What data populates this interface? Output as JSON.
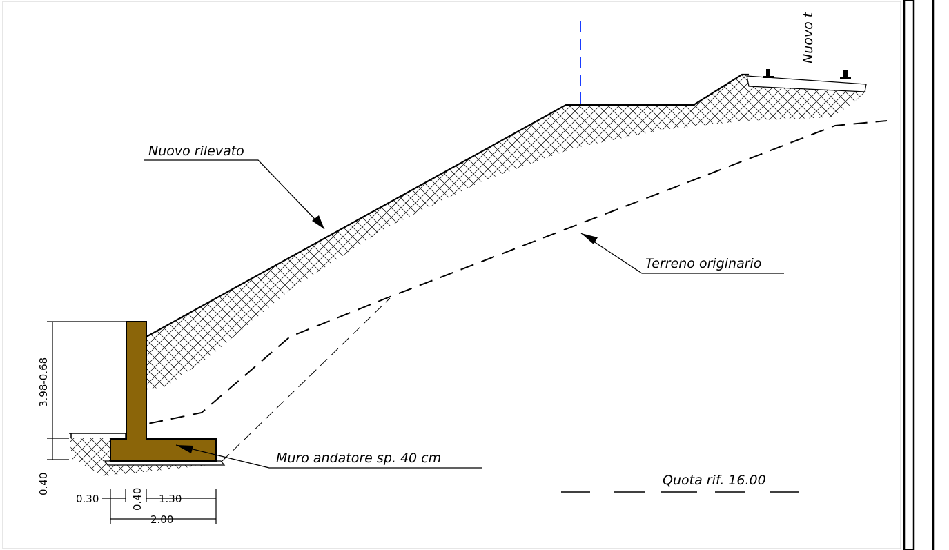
{
  "labels": {
    "embankment": "Nuovo rilevato",
    "original_ground": "Terreno originario",
    "wall": "Muro andatore sp. 40 cm",
    "reference_level": "Quota rif. 16.00",
    "track_partial": "Nuovo t"
  },
  "dimensions": {
    "wall_height": "3.98-0.68",
    "footing_thickness": "0.40",
    "toe_width": "0.30",
    "stem_width": "0.40",
    "heel_width": "1.30",
    "total_width": "2.00"
  },
  "colors": {
    "concrete_wall": "#8B6509",
    "axis_line": "#1a3cff",
    "ink": "#000000"
  }
}
